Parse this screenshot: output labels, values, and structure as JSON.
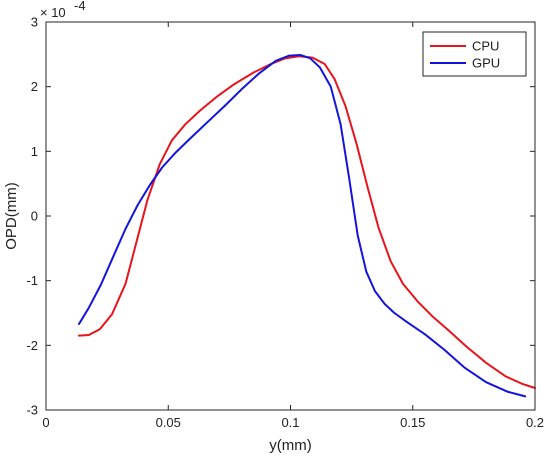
{
  "chart_data": {
    "type": "line",
    "title": "",
    "xlabel": "y(mm)",
    "ylabel": "OPD(mm)",
    "xlim": [
      0,
      0.2
    ],
    "ylim": [
      -3,
      3
    ],
    "xticks": [
      0,
      0.05,
      0.1,
      0.15,
      0.2
    ],
    "xtick_labels": [
      "0",
      "0.05",
      "0.1",
      "0.15",
      "0.2"
    ],
    "yticks": [
      -3,
      -2,
      -1,
      0,
      1,
      2,
      3
    ],
    "ytick_labels": [
      "-3",
      "-2",
      "-1",
      "0",
      "1",
      "2",
      "3"
    ],
    "y_exponent": {
      "base": "× 10",
      "power": "-4"
    },
    "grid": false,
    "legend_position": "top-right",
    "series": [
      {
        "name": "CPU",
        "color": "#e8141c",
        "x": [
          0.0135,
          0.0175,
          0.022,
          0.027,
          0.0325,
          0.037,
          0.0415,
          0.0465,
          0.0515,
          0.057,
          0.063,
          0.07,
          0.077,
          0.085,
          0.092,
          0.098,
          0.1035,
          0.109,
          0.114,
          0.118,
          0.1225,
          0.127,
          0.1315,
          0.136,
          0.141,
          0.146,
          0.152,
          0.158,
          0.165,
          0.172,
          0.18,
          0.188,
          0.195,
          0.2
        ],
        "y": [
          -1.85,
          -1.84,
          -1.75,
          -1.52,
          -1.05,
          -0.4,
          0.25,
          0.8,
          1.17,
          1.42,
          1.63,
          1.85,
          2.04,
          2.22,
          2.35,
          2.44,
          2.47,
          2.45,
          2.35,
          2.12,
          1.7,
          1.12,
          0.45,
          -0.18,
          -0.7,
          -1.05,
          -1.32,
          -1.55,
          -1.78,
          -2.02,
          -2.27,
          -2.48,
          -2.6,
          -2.66
        ]
      },
      {
        "name": "GPU",
        "color": "#1414dc",
        "x": [
          0.0135,
          0.0175,
          0.0225,
          0.0275,
          0.0325,
          0.0375,
          0.0425,
          0.0475,
          0.053,
          0.059,
          0.066,
          0.073,
          0.08,
          0.087,
          0.094,
          0.0995,
          0.104,
          0.108,
          0.112,
          0.1165,
          0.1205,
          0.124,
          0.1275,
          0.131,
          0.1345,
          0.1385,
          0.1425,
          0.148,
          0.155,
          0.163,
          0.171,
          0.18,
          0.189,
          0.196,
          0.2
        ],
        "y": [
          -1.67,
          -1.42,
          -1.06,
          -0.63,
          -0.2,
          0.17,
          0.48,
          0.75,
          0.98,
          1.2,
          1.45,
          1.7,
          1.96,
          2.2,
          2.4,
          2.48,
          2.49,
          2.44,
          2.3,
          2.0,
          1.42,
          0.58,
          -0.3,
          -0.86,
          -1.16,
          -1.36,
          -1.5,
          -1.65,
          -1.83,
          -2.07,
          -2.34,
          -2.57,
          -2.72,
          -2.79,
          null
        ]
      }
    ]
  }
}
